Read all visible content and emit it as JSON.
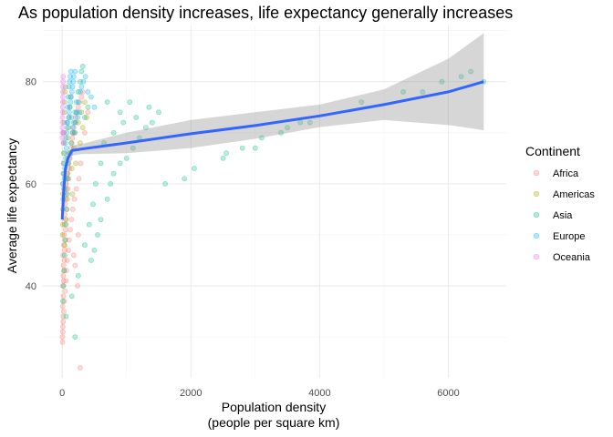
{
  "chart_data": {
    "type": "scatter",
    "title": "As population density increases, life expectancy generally increases",
    "xlabel": "Population density",
    "xlabel_line2": "(people per square km)",
    "ylabel": "Average life expectancy",
    "xlim": [
      -300,
      6900
    ],
    "ylim": [
      22,
      91
    ],
    "x_ticks": [
      0,
      2000,
      4000,
      6000
    ],
    "x_tick_labels": [
      "0",
      "2000",
      "4000",
      "6000"
    ],
    "y_ticks": [
      40,
      60,
      80
    ],
    "y_tick_labels": [
      "40",
      "60",
      "80"
    ],
    "grid": true,
    "legend": {
      "title": "Continent",
      "placement": "right",
      "entries": [
        {
          "name": "Africa",
          "color": "#F8766D"
        },
        {
          "name": "Americas",
          "color": "#A3A500"
        },
        {
          "name": "Asia",
          "color": "#00BF7D"
        },
        {
          "name": "Europe",
          "color": "#00B0F6"
        },
        {
          "name": "Oceania",
          "color": "#E76BF3"
        }
      ]
    },
    "series": [
      {
        "name": "Africa",
        "color": "#F8766D",
        "points": [
          [
            5,
            30
          ],
          [
            10,
            32
          ],
          [
            15,
            34
          ],
          [
            8,
            36
          ],
          [
            20,
            38
          ],
          [
            12,
            40
          ],
          [
            25,
            41
          ],
          [
            18,
            42
          ],
          [
            30,
            43
          ],
          [
            22,
            44
          ],
          [
            35,
            45
          ],
          [
            14,
            46
          ],
          [
            40,
            47
          ],
          [
            28,
            48
          ],
          [
            45,
            49
          ],
          [
            32,
            50
          ],
          [
            50,
            51
          ],
          [
            38,
            52
          ],
          [
            60,
            53
          ],
          [
            42,
            54
          ],
          [
            70,
            55
          ],
          [
            48,
            56
          ],
          [
            80,
            57
          ],
          [
            55,
            58
          ],
          [
            90,
            59
          ],
          [
            62,
            60
          ],
          [
            100,
            61
          ],
          [
            75,
            62
          ],
          [
            110,
            63
          ],
          [
            85,
            64
          ],
          [
            120,
            65
          ],
          [
            130,
            66
          ],
          [
            140,
            67
          ],
          [
            150,
            68
          ],
          [
            160,
            69
          ],
          [
            170,
            70
          ],
          [
            180,
            71
          ],
          [
            200,
            72
          ],
          [
            210,
            73
          ],
          [
            230,
            74
          ],
          [
            250,
            75
          ],
          [
            270,
            76
          ],
          [
            300,
            77
          ],
          [
            320,
            78
          ],
          [
            6,
            29
          ],
          [
            11,
            31
          ],
          [
            16,
            33
          ],
          [
            26,
            35
          ],
          [
            33,
            37
          ],
          [
            44,
            39
          ],
          [
            58,
            41
          ],
          [
            66,
            43
          ],
          [
            78,
            45
          ],
          [
            95,
            47
          ],
          [
            108,
            49
          ],
          [
            125,
            51
          ],
          [
            145,
            53
          ],
          [
            165,
            55
          ],
          [
            190,
            57
          ],
          [
            220,
            59
          ],
          [
            260,
            61
          ],
          [
            290,
            64
          ],
          [
            350,
            70
          ],
          [
            400,
            74
          ],
          [
            280,
            24
          ],
          [
            200,
            44
          ],
          [
            250,
            50
          ],
          [
            180,
            46
          ],
          [
            240,
            40
          ]
        ]
      },
      {
        "name": "Americas",
        "color": "#A3A500",
        "points": [
          [
            5,
            50
          ],
          [
            8,
            52
          ],
          [
            10,
            55
          ],
          [
            12,
            58
          ],
          [
            15,
            60
          ],
          [
            18,
            62
          ],
          [
            20,
            64
          ],
          [
            22,
            66
          ],
          [
            25,
            68
          ],
          [
            28,
            70
          ],
          [
            30,
            72
          ],
          [
            35,
            74
          ],
          [
            40,
            76
          ],
          [
            45,
            78
          ],
          [
            50,
            79
          ],
          [
            60,
            57
          ],
          [
            70,
            61
          ],
          [
            80,
            65
          ],
          [
            90,
            69
          ],
          [
            100,
            71
          ],
          [
            110,
            73
          ],
          [
            120,
            75
          ],
          [
            130,
            77
          ],
          [
            150,
            63
          ],
          [
            180,
            67
          ],
          [
            200,
            70
          ],
          [
            250,
            72
          ],
          [
            300,
            74
          ],
          [
            350,
            76
          ],
          [
            40,
            48
          ],
          [
            55,
            53
          ],
          [
            65,
            59
          ],
          [
            85,
            62
          ],
          [
            95,
            66
          ],
          [
            160,
            58
          ],
          [
            210,
            64
          ],
          [
            280,
            68
          ],
          [
            320,
            71
          ],
          [
            380,
            73
          ]
        ]
      },
      {
        "name": "Asia",
        "color": "#00BF7D",
        "points": [
          [
            10,
            37
          ],
          [
            20,
            40
          ],
          [
            30,
            43
          ],
          [
            40,
            46
          ],
          [
            50,
            49
          ],
          [
            60,
            52
          ],
          [
            70,
            55
          ],
          [
            80,
            58
          ],
          [
            90,
            61
          ],
          [
            100,
            64
          ],
          [
            120,
            66
          ],
          [
            140,
            68
          ],
          [
            160,
            70
          ],
          [
            180,
            72
          ],
          [
            200,
            74
          ],
          [
            220,
            76
          ],
          [
            250,
            78
          ],
          [
            280,
            80
          ],
          [
            300,
            82
          ],
          [
            320,
            83
          ],
          [
            350,
            73
          ],
          [
            400,
            75
          ],
          [
            450,
            45
          ],
          [
            500,
            47
          ],
          [
            550,
            50
          ],
          [
            600,
            53
          ],
          [
            700,
            57
          ],
          [
            750,
            60
          ],
          [
            800,
            62
          ],
          [
            900,
            64
          ],
          [
            1000,
            65
          ],
          [
            1100,
            67
          ],
          [
            1200,
            69
          ],
          [
            1300,
            71
          ],
          [
            1400,
            72
          ],
          [
            1500,
            74
          ],
          [
            1600,
            60
          ],
          [
            1900,
            61
          ],
          [
            2050,
            63
          ],
          [
            2500,
            65
          ],
          [
            2550,
            66
          ],
          [
            2800,
            67
          ],
          [
            3000,
            67
          ],
          [
            3100,
            69
          ],
          [
            3400,
            70
          ],
          [
            3500,
            71
          ],
          [
            3700,
            72
          ],
          [
            3850,
            72
          ],
          [
            4650,
            76
          ],
          [
            5300,
            78
          ],
          [
            5600,
            78
          ],
          [
            5900,
            80
          ],
          [
            6200,
            81
          ],
          [
            6350,
            82
          ],
          [
            6550,
            80
          ],
          [
            700,
            76
          ],
          [
            900,
            74
          ],
          [
            1050,
            76
          ],
          [
            150,
            38
          ],
          [
            250,
            42
          ],
          [
            350,
            48
          ],
          [
            420,
            52
          ],
          [
            480,
            56
          ],
          [
            520,
            60
          ],
          [
            600,
            64
          ],
          [
            650,
            68
          ],
          [
            800,
            70
          ],
          [
            950,
            72
          ],
          [
            1150,
            73
          ],
          [
            1350,
            75
          ],
          [
            200,
            30
          ],
          [
            60,
            34
          ]
        ]
      },
      {
        "name": "Europe",
        "color": "#00B0F6",
        "points": [
          [
            10,
            60
          ],
          [
            20,
            62
          ],
          [
            30,
            64
          ],
          [
            40,
            66
          ],
          [
            50,
            68
          ],
          [
            60,
            69
          ],
          [
            70,
            70
          ],
          [
            80,
            71
          ],
          [
            90,
            72
          ],
          [
            100,
            73
          ],
          [
            110,
            74
          ],
          [
            120,
            75
          ],
          [
            130,
            76
          ],
          [
            140,
            77
          ],
          [
            150,
            78
          ],
          [
            160,
            79
          ],
          [
            170,
            80
          ],
          [
            180,
            81
          ],
          [
            200,
            82
          ],
          [
            220,
            74
          ],
          [
            250,
            76
          ],
          [
            280,
            78
          ],
          [
            300,
            79
          ],
          [
            330,
            80
          ],
          [
            360,
            81
          ],
          [
            400,
            78
          ],
          [
            450,
            77
          ],
          [
            500,
            75
          ],
          [
            15,
            57
          ],
          [
            25,
            59
          ],
          [
            35,
            61
          ],
          [
            45,
            63
          ],
          [
            55,
            65
          ],
          [
            65,
            67
          ],
          [
            75,
            72
          ],
          [
            85,
            75
          ],
          [
            95,
            77
          ],
          [
            105,
            79
          ],
          [
            115,
            80
          ],
          [
            125,
            81
          ],
          [
            135,
            82
          ],
          [
            145,
            73
          ],
          [
            165,
            71
          ],
          [
            190,
            70
          ],
          [
            210,
            72
          ],
          [
            240,
            73
          ],
          [
            270,
            74
          ]
        ]
      },
      {
        "name": "Oceania",
        "color": "#E76BF3",
        "points": [
          [
            2,
            69
          ],
          [
            3,
            70
          ],
          [
            4,
            71
          ],
          [
            5,
            72
          ],
          [
            6,
            73
          ],
          [
            7,
            74
          ],
          [
            8,
            75
          ],
          [
            9,
            76
          ],
          [
            10,
            77
          ],
          [
            11,
            78
          ],
          [
            12,
            79
          ],
          [
            14,
            80
          ],
          [
            16,
            81
          ],
          [
            18,
            68
          ],
          [
            20,
            70
          ]
        ]
      }
    ],
    "smooth": {
      "line": [
        [
          0,
          53
        ],
        [
          20,
          58
        ],
        [
          50,
          63
        ],
        [
          90,
          65
        ],
        [
          150,
          66.5
        ],
        [
          300,
          66.8
        ],
        [
          1000,
          68
        ],
        [
          2000,
          69.8
        ],
        [
          3000,
          71.4
        ],
        [
          4000,
          73.3
        ],
        [
          5000,
          75.5
        ],
        [
          6000,
          78
        ],
        [
          6550,
          80
        ]
      ],
      "band_upper": [
        [
          0,
          54
        ],
        [
          150,
          67.5
        ],
        [
          300,
          67.8
        ],
        [
          1000,
          70
        ],
        [
          2000,
          72.5
        ],
        [
          3000,
          74
        ],
        [
          4000,
          75.5
        ],
        [
          5000,
          78.5
        ],
        [
          6000,
          84.5
        ],
        [
          6550,
          89.5
        ]
      ],
      "band_lower": [
        [
          0,
          52
        ],
        [
          150,
          65.5
        ],
        [
          300,
          65.8
        ],
        [
          1000,
          66
        ],
        [
          2000,
          67
        ],
        [
          3000,
          68.8
        ],
        [
          4000,
          71.1
        ],
        [
          5000,
          72.5
        ],
        [
          6000,
          71.5
        ],
        [
          6550,
          70.5
        ]
      ]
    }
  }
}
